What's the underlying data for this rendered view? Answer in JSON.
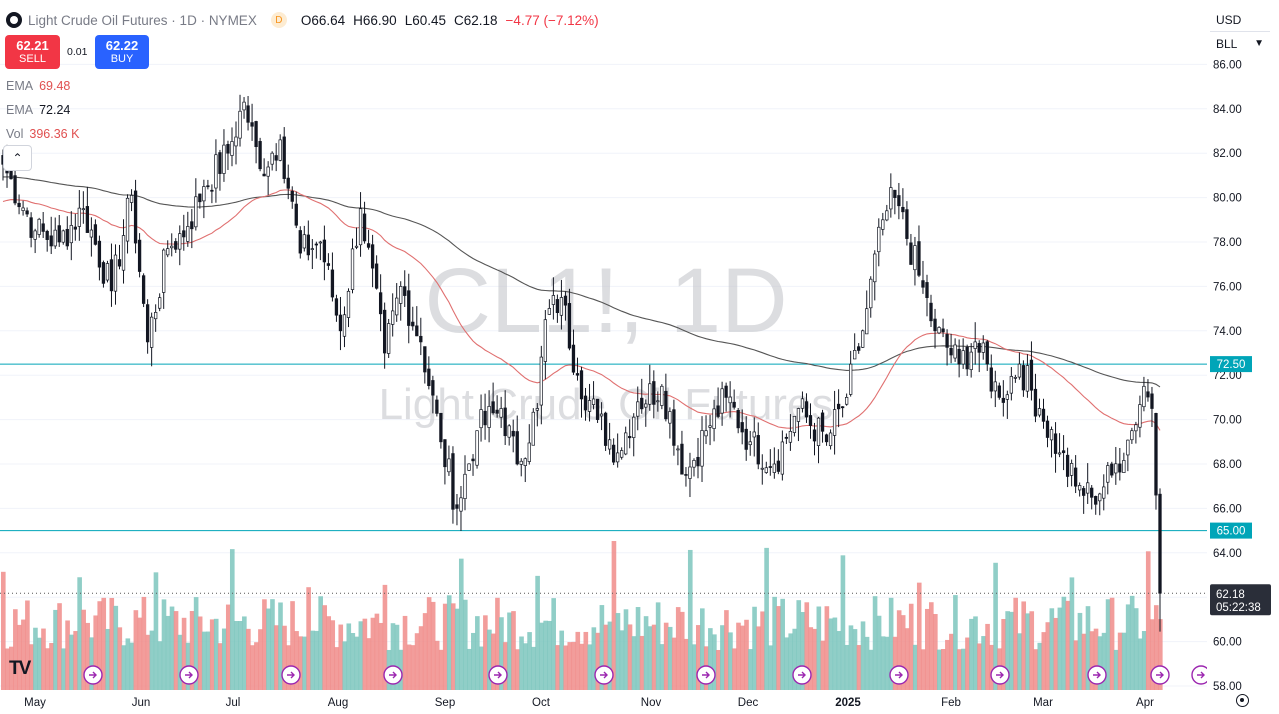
{
  "header": {
    "title": "Light Crude Oil Futures · 1D · NYMEX",
    "badge": "D",
    "open_label": "O",
    "open": "66.64",
    "high_label": "H",
    "high": "66.90",
    "low_label": "L",
    "low": "60.45",
    "close_label": "C",
    "close": "62.18",
    "change": "−4.77 (−7.12%)"
  },
  "trade": {
    "sell_price": "62.21",
    "sell_label": "SELL",
    "buy_price": "62.22",
    "buy_label": "BUY",
    "spread": "0.01"
  },
  "indicators": [
    {
      "name": "EMA",
      "value": "69.48",
      "color": "#e57373"
    },
    {
      "name": "EMA",
      "value": "72.24",
      "color": "#131722"
    },
    {
      "name": "Vol",
      "value": "396.36 K",
      "color": "#e57373"
    }
  ],
  "currency_select": "USD",
  "unit_select": "BLL",
  "colors": {
    "up": "#131722",
    "down": "#131722",
    "ema50": "#e07070",
    "ema200": "#555555",
    "hline": "#00a5b8",
    "vol_up": "#7cc6bd",
    "vol_down": "#f08c8a"
  },
  "icons": [
    "tradingview-logo-icon",
    "collapse-chevron-up-icon",
    "chevron-down-icon",
    "event-flag-icon",
    "clock-settings-icon"
  ],
  "chart_data": {
    "type": "candlestick",
    "watermark_symbol": "CL1!, 1D",
    "watermark_name": "Light Crude Oil Futures",
    "ylim": [
      58,
      87
    ],
    "yticks": [
      "58.00",
      "60.00",
      "62.00",
      "64.00",
      "66.00",
      "68.00",
      "70.00",
      "72.00",
      "74.00",
      "76.00",
      "78.00",
      "80.00",
      "82.00",
      "84.00",
      "86.00"
    ],
    "xticks": [
      "May",
      "Jun",
      "Jul",
      "Aug",
      "Sep",
      "Oct",
      "Nov",
      "Dec",
      "2025",
      "Feb",
      "Mar",
      "Apr"
    ],
    "horizontal_lines": [
      {
        "label": "72.50",
        "value": 72.5
      },
      {
        "label": "65.00",
        "value": 65.0
      }
    ],
    "last_price": {
      "label": "62.18",
      "countdown": "05:22:38",
      "value": 62.18
    },
    "anchors": [
      {
        "t": 0,
        "close": 81.5
      },
      {
        "t": 8,
        "close": 78.5
      },
      {
        "t": 14,
        "close": 78.0
      },
      {
        "t": 20,
        "close": 79.5
      },
      {
        "t": 27,
        "close": 75.8
      },
      {
        "t": 32,
        "close": 80.1
      },
      {
        "t": 36,
        "close": 73.5
      },
      {
        "t": 41,
        "close": 77.7
      },
      {
        "t": 46,
        "close": 78.7
      },
      {
        "t": 50,
        "close": 80.5
      },
      {
        "t": 56,
        "close": 82.0
      },
      {
        "t": 60,
        "close": 84.3
      },
      {
        "t": 64,
        "close": 81.3
      },
      {
        "t": 69,
        "close": 82.6
      },
      {
        "t": 74,
        "close": 77.5
      },
      {
        "t": 79,
        "close": 78.0
      },
      {
        "t": 84,
        "close": 74.0
      },
      {
        "t": 89,
        "close": 79.5
      },
      {
        "t": 95,
        "close": 73.0
      },
      {
        "t": 99,
        "close": 76.0
      },
      {
        "t": 104,
        "close": 73.5
      },
      {
        "t": 109,
        "close": 69.0
      },
      {
        "t": 113,
        "close": 66.0
      },
      {
        "t": 118,
        "close": 69.5
      },
      {
        "t": 124,
        "close": 70.5
      },
      {
        "t": 128,
        "close": 68.0
      },
      {
        "t": 133,
        "close": 70.5
      },
      {
        "t": 135,
        "close": 74.5
      },
      {
        "t": 139,
        "close": 75.5
      },
      {
        "t": 143,
        "close": 72.0
      },
      {
        "t": 148,
        "close": 70.0
      },
      {
        "t": 153,
        "close": 68.5
      },
      {
        "t": 158,
        "close": 70.8
      },
      {
        "t": 164,
        "close": 71.5
      },
      {
        "t": 170,
        "close": 67.5
      },
      {
        "t": 175,
        "close": 69.5
      },
      {
        "t": 180,
        "close": 71.0
      },
      {
        "t": 186,
        "close": 69.0
      },
      {
        "t": 192,
        "close": 68.0
      },
      {
        "t": 198,
        "close": 70.5
      },
      {
        "t": 205,
        "close": 69.0
      },
      {
        "t": 210,
        "close": 71.0
      },
      {
        "t": 214,
        "close": 74.0
      },
      {
        "t": 219,
        "close": 79.0
      },
      {
        "t": 222,
        "close": 80.0
      },
      {
        "t": 228,
        "close": 76.5
      },
      {
        "t": 232,
        "close": 74.0
      },
      {
        "t": 238,
        "close": 72.5
      },
      {
        "t": 242,
        "close": 73.5
      },
      {
        "t": 248,
        "close": 71.0
      },
      {
        "t": 253,
        "close": 72.5
      },
      {
        "t": 258,
        "close": 70.5
      },
      {
        "t": 263,
        "close": 68.5
      },
      {
        "t": 267,
        "close": 67.0
      },
      {
        "t": 271,
        "close": 66.5
      },
      {
        "t": 276,
        "close": 67.5
      },
      {
        "t": 281,
        "close": 69.5
      },
      {
        "t": 284,
        "close": 71.5
      },
      {
        "t": 286,
        "close": 70.5
      },
      {
        "t": 287,
        "close": 66.6
      },
      {
        "t": 288,
        "close": 62.18
      }
    ]
  }
}
